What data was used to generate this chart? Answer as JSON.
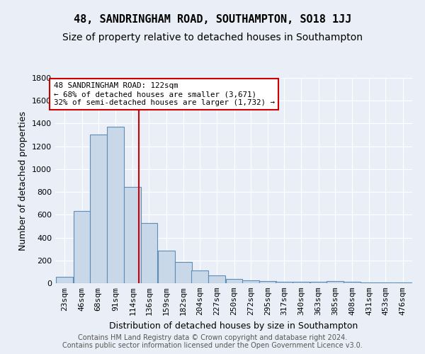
{
  "title": "48, SANDRINGHAM ROAD, SOUTHAMPTON, SO18 1JJ",
  "subtitle": "Size of property relative to detached houses in Southampton",
  "xlabel": "Distribution of detached houses by size in Southampton",
  "ylabel": "Number of detached properties",
  "categories": [
    "23sqm",
    "46sqm",
    "68sqm",
    "91sqm",
    "114sqm",
    "136sqm",
    "159sqm",
    "182sqm",
    "204sqm",
    "227sqm",
    "250sqm",
    "272sqm",
    "295sqm",
    "317sqm",
    "340sqm",
    "363sqm",
    "385sqm",
    "408sqm",
    "431sqm",
    "453sqm",
    "476sqm"
  ],
  "bar_heights": [
    55,
    635,
    1305,
    1370,
    845,
    525,
    285,
    185,
    110,
    70,
    40,
    25,
    18,
    15,
    15,
    15,
    18,
    10,
    8,
    5,
    5
  ],
  "bar_color": "#c8d8e8",
  "bar_edgecolor": "#5b8db8",
  "vline_color": "#cc0000",
  "annotation_text": "48 SANDRINGHAM ROAD: 122sqm\n← 68% of detached houses are smaller (3,671)\n32% of semi-detached houses are larger (1,732) →",
  "annotation_box_color": "#ffffff",
  "annotation_box_edgecolor": "#cc0000",
  "ylim": [
    0,
    1800
  ],
  "yticks": [
    0,
    200,
    400,
    600,
    800,
    1000,
    1200,
    1400,
    1600,
    1800
  ],
  "footer_text": "Contains HM Land Registry data © Crown copyright and database right 2024.\nContains public sector information licensed under the Open Government Licence v3.0.",
  "bg_color": "#eaeff7",
  "title_fontsize": 11,
  "subtitle_fontsize": 10,
  "axis_fontsize": 9,
  "tick_fontsize": 8,
  "category_values": [
    23,
    46,
    68,
    91,
    114,
    136,
    159,
    182,
    204,
    227,
    250,
    272,
    295,
    317,
    340,
    363,
    385,
    408,
    431,
    453,
    476
  ],
  "vline_sqm": 122
}
